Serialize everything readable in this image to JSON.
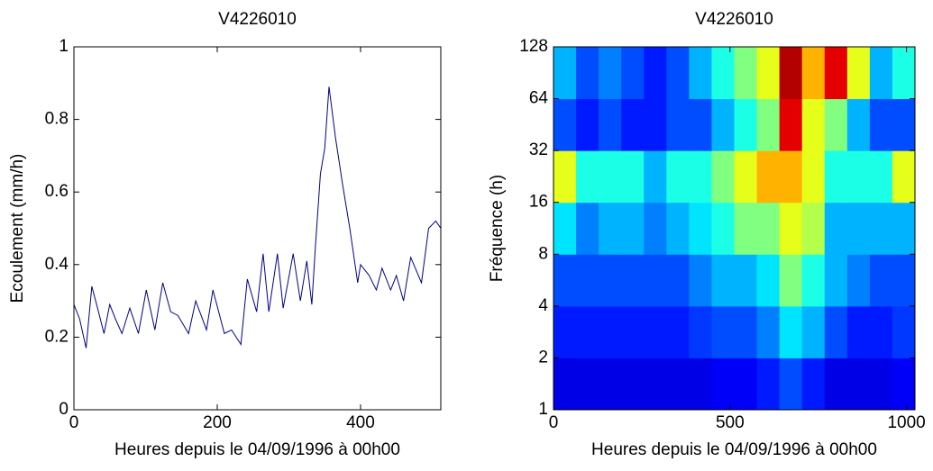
{
  "chart_data": [
    {
      "type": "line",
      "title": "V4226010",
      "xlabel": "Heures depuis le 04/09/1996 à 00h00",
      "ylabel": "Ecoulement (mm/h)",
      "x": [
        0,
        8,
        17,
        25,
        33,
        42,
        50,
        58,
        67,
        78,
        90,
        101,
        113,
        124,
        135,
        145,
        160,
        170,
        185,
        194,
        210,
        220,
        233,
        242,
        255,
        264,
        272,
        284,
        292,
        306,
        316,
        325,
        332,
        337,
        344,
        350,
        356,
        365,
        375,
        385,
        396,
        400,
        412,
        422,
        430,
        442,
        450,
        460,
        470,
        485,
        495,
        505,
        512
      ],
      "values": [
        0.29,
        0.25,
        0.17,
        0.34,
        0.28,
        0.21,
        0.29,
        0.25,
        0.21,
        0.28,
        0.21,
        0.33,
        0.22,
        0.35,
        0.27,
        0.26,
        0.21,
        0.3,
        0.22,
        0.33,
        0.21,
        0.22,
        0.18,
        0.36,
        0.27,
        0.43,
        0.27,
        0.43,
        0.28,
        0.43,
        0.3,
        0.41,
        0.29,
        0.45,
        0.65,
        0.72,
        0.89,
        0.75,
        0.62,
        0.5,
        0.35,
        0.4,
        0.37,
        0.33,
        0.39,
        0.33,
        0.37,
        0.3,
        0.42,
        0.35,
        0.5,
        0.52,
        0.5
      ],
      "color": "#00008b",
      "xlim": [
        0,
        512
      ],
      "xticks": [
        0,
        200,
        400
      ],
      "ylim": [
        0,
        1
      ],
      "yticks": [
        0,
        0.2,
        0.4,
        0.6,
        0.8,
        1
      ]
    },
    {
      "type": "heatmap",
      "title": "V4226010",
      "xlabel": "Heures depuis le 04/09/1996 à 00h00",
      "ylabel": "Fréquence (h)",
      "xbins": [
        0,
        64,
        128,
        192,
        256,
        320,
        384,
        448,
        512,
        576,
        640,
        704,
        768,
        832,
        896,
        960,
        1024
      ],
      "ybins": [
        1,
        2,
        4,
        8,
        16,
        32,
        64,
        128
      ],
      "z": [
        [
          0.1,
          0.1,
          0.1,
          0.1,
          0.1,
          0.1,
          0.1,
          0.12,
          0.12,
          0.15,
          0.2,
          0.15,
          0.1,
          0.1,
          0.1,
          0.12
        ],
        [
          0.15,
          0.15,
          0.15,
          0.15,
          0.15,
          0.15,
          0.18,
          0.2,
          0.2,
          0.25,
          0.35,
          0.3,
          0.2,
          0.15,
          0.15,
          0.18
        ],
        [
          0.2,
          0.2,
          0.2,
          0.2,
          0.2,
          0.2,
          0.25,
          0.3,
          0.3,
          0.35,
          0.5,
          0.4,
          0.3,
          0.25,
          0.2,
          0.2
        ],
        [
          0.35,
          0.25,
          0.3,
          0.3,
          0.25,
          0.3,
          0.35,
          0.4,
          0.5,
          0.5,
          0.6,
          0.55,
          0.3,
          0.3,
          0.3,
          0.3
        ],
        [
          0.6,
          0.4,
          0.4,
          0.4,
          0.3,
          0.4,
          0.4,
          0.5,
          0.6,
          0.7,
          0.7,
          0.6,
          0.4,
          0.4,
          0.4,
          0.6
        ],
        [
          0.2,
          0.15,
          0.2,
          0.15,
          0.15,
          0.2,
          0.2,
          0.3,
          0.4,
          0.5,
          0.9,
          0.6,
          0.5,
          0.3,
          0.2,
          0.2
        ],
        [
          0.3,
          0.2,
          0.25,
          0.2,
          0.15,
          0.2,
          0.3,
          0.4,
          0.5,
          0.6,
          0.95,
          0.7,
          0.9,
          0.6,
          0.3,
          0.4
        ]
      ],
      "zlim": [
        0,
        1
      ],
      "colormap": "jet",
      "xlim": [
        0,
        1024
      ],
      "xticks": [
        0,
        500,
        1000
      ],
      "ylim": [
        1,
        128
      ],
      "yticks": [
        1,
        2,
        4,
        8,
        16,
        32,
        64,
        128
      ],
      "yscale": "log"
    }
  ]
}
